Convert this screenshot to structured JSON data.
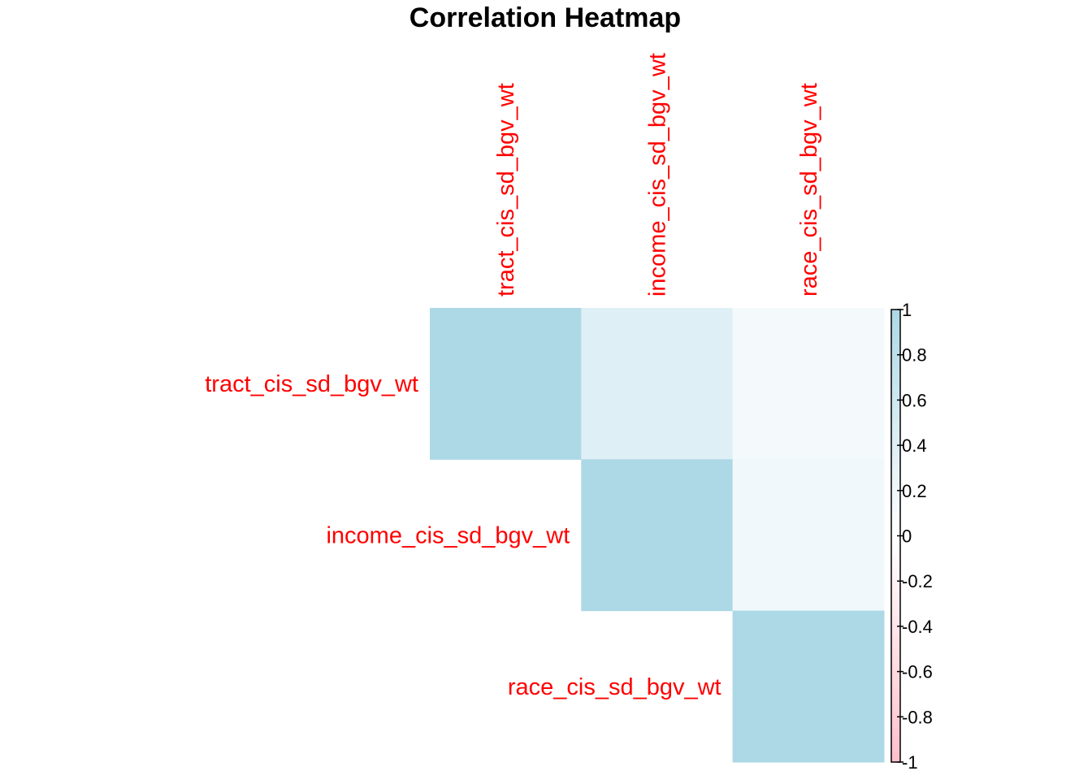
{
  "chart_data": {
    "type": "heatmap",
    "title": "Correlation Heatmap",
    "layout": "upper-triangle",
    "variables": [
      "tract_cis_sd_bgv_wt",
      "income_cis_sd_bgv_wt",
      "race_cis_sd_bgv_wt"
    ],
    "matrix": [
      [
        1.0,
        0.4,
        0.13
      ],
      [
        0.4,
        1.0,
        0.18
      ],
      [
        0.13,
        0.18,
        1.0
      ]
    ],
    "color_scale": {
      "min": -1,
      "max": 1,
      "negative_color": "#FFC0CB",
      "zero_color": "#FFFFFF",
      "positive_color": "#ADD8E6",
      "ticks": [
        "1",
        "0.8",
        "0.6",
        "0.4",
        "0.2",
        "0",
        "-0.2",
        "-0.4",
        "-0.6",
        "-0.8",
        "-1"
      ]
    },
    "label_color": "#FF0000",
    "legend_position": "right"
  }
}
